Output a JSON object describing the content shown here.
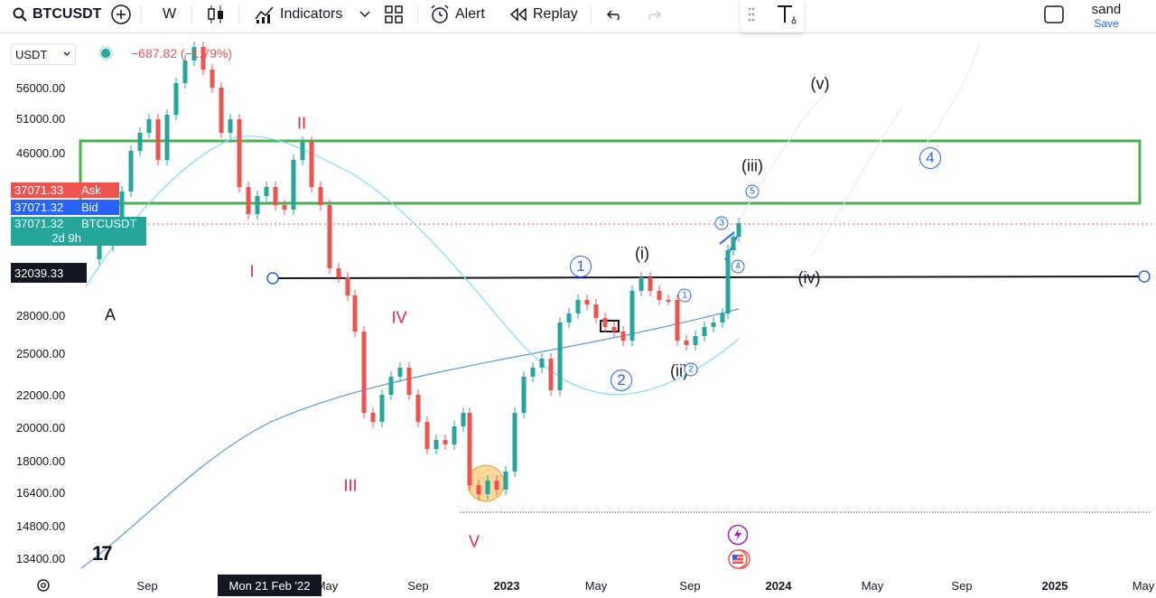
{
  "toolbar": {
    "symbol": "BTCUSDT",
    "interval": "W",
    "indicators_label": "Indicators",
    "alert_label": "Alert",
    "replay_label": "Replay",
    "layout_name": "sand",
    "save_label": "Save"
  },
  "legend": {
    "currency": "USDT",
    "change": "−687.82 (−1.79%)"
  },
  "price_scale": {
    "labels": [
      "56000.00",
      "51000.00",
      "46000.00",
      "28000.00",
      "25000.00",
      "22000.00",
      "20000.00",
      "18000.00",
      "16400.00",
      "14800.00",
      "13400.00"
    ],
    "ask_price": "37071.33",
    "ask_label": "Ask",
    "bid_price": "37071.32",
    "bid_label": "Bid",
    "last_price": "37071.32",
    "last_symbol": "BTCUSDT",
    "countdown": "2d 9h",
    "line_price": "32039.33"
  },
  "time_scale": {
    "labels": [
      "Sep",
      "May",
      "Sep",
      "2023",
      "May",
      "Sep",
      "2024",
      "May",
      "Sep",
      "2025",
      "May"
    ],
    "crosshair_date": "Mon 21 Feb '22"
  },
  "waves": {
    "A": "A",
    "I": "I",
    "II": "II",
    "III": "III",
    "IV": "IV",
    "V": "V",
    "i": "(i)",
    "ii": "(ii)",
    "iii": "(iii)",
    "iv": "(iv)",
    "v": "(v)",
    "c1": "1",
    "c2": "2",
    "c4": "4",
    "s1": "1",
    "s2": "2",
    "s3": "3",
    "s4": "4",
    "s5": "5"
  },
  "colors": {
    "up": "#26a69a",
    "down": "#ef5350",
    "box": "#4caf50",
    "ma_fast": "#7fdbff",
    "ma_slow": "#5b9bd5",
    "accent": "#2962ff"
  }
}
